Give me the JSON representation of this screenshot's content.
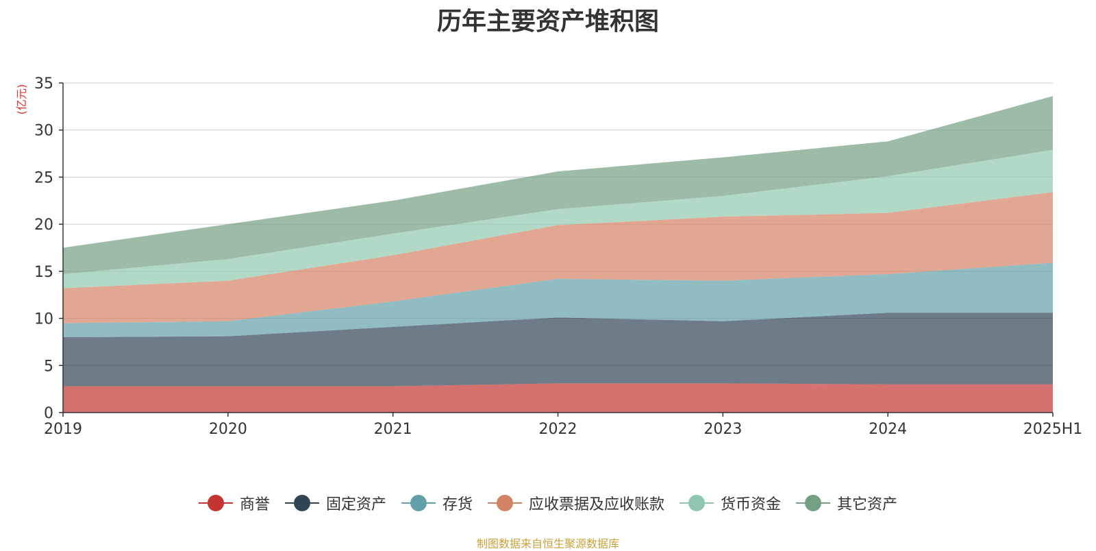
{
  "chart_data": {
    "type": "area",
    "stacked": true,
    "title": "历年主要资产堆积图",
    "ylabel": "(亿元)",
    "xlabel": "",
    "categories": [
      "2019",
      "2020",
      "2021",
      "2022",
      "2023",
      "2024",
      "2025H1"
    ],
    "ylim": [
      0,
      35
    ],
    "yticks": [
      0,
      5,
      10,
      15,
      20,
      25,
      30,
      35
    ],
    "grid": true,
    "legend_position": "bottom",
    "series": [
      {
        "name": "商誉",
        "color": "#c23531",
        "values": [
          2.8,
          2.8,
          2.8,
          3.1,
          3.1,
          3.0,
          3.0
        ]
      },
      {
        "name": "固定资产",
        "color": "#2f4554",
        "values": [
          5.2,
          5.3,
          6.3,
          7.0,
          6.6,
          7.6,
          7.6
        ]
      },
      {
        "name": "存货",
        "color": "#61a0a8",
        "values": [
          1.5,
          1.6,
          2.7,
          4.1,
          4.3,
          4.1,
          5.3
        ]
      },
      {
        "name": "应收票据及应收账款",
        "color": "#d48265",
        "values": [
          3.7,
          4.3,
          4.9,
          5.7,
          6.8,
          6.5,
          7.5
        ]
      },
      {
        "name": "货币资金",
        "color": "#91c7ae",
        "values": [
          1.5,
          2.3,
          2.3,
          1.7,
          2.2,
          3.9,
          4.5
        ]
      },
      {
        "name": "其它资产",
        "color": "#749f83",
        "values": [
          2.8,
          3.7,
          3.5,
          4.0,
          4.1,
          3.7,
          5.7
        ]
      }
    ]
  },
  "footer": {
    "source": "制图数据来自恒生聚源数据库"
  }
}
